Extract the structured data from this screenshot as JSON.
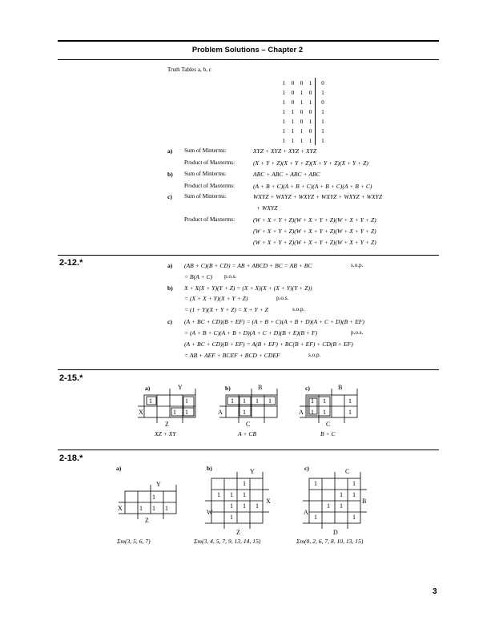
{
  "header": {
    "title": "Problem Solutions – Chapter 2"
  },
  "truth": {
    "caption": "Truth Tables a, b, c",
    "rows": [
      [
        "1",
        "0",
        "0",
        "1",
        "0"
      ],
      [
        "1",
        "0",
        "1",
        "0",
        "1"
      ],
      [
        "1",
        "0",
        "1",
        "1",
        "0"
      ],
      [
        "1",
        "1",
        "0",
        "0",
        "1"
      ],
      [
        "1",
        "1",
        "0",
        "1",
        "1"
      ],
      [
        "1",
        "1",
        "1",
        "0",
        "1"
      ],
      [
        "1",
        "1",
        "1",
        "1",
        "1"
      ]
    ]
  },
  "part1": {
    "a_label": "a)",
    "a_min_lbl": "Sum of Minterms:",
    "a_min": "XYZ + XYZ + XYZ + XYZ",
    "a_max_lbl": "Product of Maxterms:",
    "a_max": "(X + Y + Z)(X + Y + Z)(X + Y + Z)(X + Y + Z)",
    "b_label": "b)",
    "b_min_lbl": "Sum of Minterms:",
    "b_min": "ABC + ABC + ABC + ABC",
    "b_max_lbl": "Product of Maxterms:",
    "b_max": "(A + B + C)(A + B + C)(A + B + C)(A + B + C)",
    "c_label": "c)",
    "c_min_lbl": "Sum of Minterms:",
    "c_min": "WXYZ + WXYZ + WXYZ + WXYZ + WXYZ + WXYZ",
    "c_min2": "+ WXYZ",
    "c_max_lbl": "Product of Maxterms:",
    "c_max1": "(W + X + Y + Z)(W + X + Y + Z)(W + X + Y + Z)",
    "c_max2": "(W + X + Y + Z)(W + X + Y + Z)(W + X + Y + Z)",
    "c_max3": "(W + X + Y + Z)(W + X + Y + Z)(W + X + Y + Z)"
  },
  "p212": {
    "num": "2-12.*",
    "a": "a)",
    "b": "b)",
    "c": "c)",
    "l1": "(AB + C)(B + CD) = AB + ABCD + BC = AB + BC",
    "l1s": "s.o.p.",
    "l2": "= B(A + C)",
    "l2s": "p.o.s.",
    "l3": "X + X(X + Y)(Y + Z) = (X + X)(X + (X + Y)(Y + Z))",
    "l4": "= (X + X + Y)(X + Y + Z)",
    "l4s": "p.o.s.",
    "l5": "= (1 + Y)(X + Y + Z) = X + Y + Z",
    "l5s": "s.o.p.",
    "l6": "(A + BC + CD)(B + EF) = (A + B + C)(A + B + D)(A + C + D)(B + EF)",
    "l7": "= (A + B + C)(A + B + D)(A + C + D)(B + E)(B + F)",
    "l7s": "p.o.s.",
    "l8": "(A + BC + CD)(B + EF) = A(B + EF) + BC(B + EF) + CD(B + EF)",
    "l9": "= AB + AEF + BCEF + BCD + CDEF",
    "l9s": "s.o.p."
  },
  "p215": {
    "num": "2-15.*",
    "a": {
      "label": "a)",
      "var_top": "Y",
      "var_left": "X",
      "var_bot": "Z",
      "cells": [
        "1",
        "1",
        "1",
        "1"
      ],
      "result": "XZ + XY"
    },
    "b": {
      "label": "b)",
      "var_top": "B",
      "var_left": "A",
      "var_bot": "C",
      "cells": [
        "1",
        "1",
        "1",
        "1",
        "1"
      ],
      "result": "A + CB"
    },
    "c": {
      "label": "c)",
      "var_top": "B",
      "var_left": "A",
      "var_bot": "C",
      "cells": [
        "1",
        "1",
        "1",
        "1",
        "1",
        "1"
      ],
      "result": "B + C"
    }
  },
  "p218": {
    "num": "2-18.*",
    "a": {
      "label": "a)",
      "var_top": "Y",
      "var_left": "X",
      "var_bot": "Z",
      "cells": [
        "1",
        "1",
        "1",
        "1"
      ],
      "result": "Σm(3, 5, 6, 7)"
    },
    "b": {
      "label": "b)",
      "var_top": "Y",
      "var_right": "X",
      "var_left": "W",
      "var_bot": "Z",
      "cells": [
        "1",
        "1",
        "1",
        "1",
        "1",
        "1",
        "1",
        "1"
      ],
      "result": "Σm(3, 4, 5, 7, 9, 13, 14, 15)"
    },
    "c": {
      "label": "c)",
      "var_top": "C",
      "var_right": "B",
      "var_left": "A",
      "var_bot": "D",
      "cells": [
        "1",
        "1",
        "1",
        "1",
        "1",
        "1",
        "1",
        "1"
      ],
      "result": "Σm(0, 2, 6, 7, 8, 10, 13, 15)"
    }
  },
  "footer": {
    "page": "3"
  }
}
